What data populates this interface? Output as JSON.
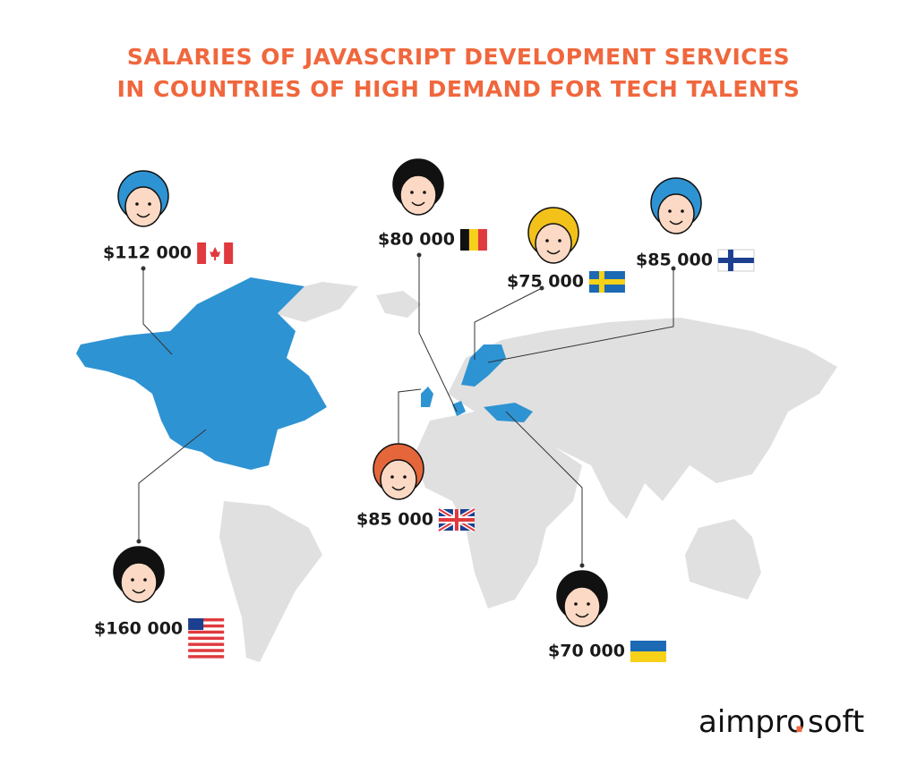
{
  "title": [
    "SALARIES OF JAVASCRIPT DEVELOPMENT SERVICES",
    "IN COUNTRIES OF HIGH DEMAND FOR TECH TALENTS"
  ],
  "markers": [
    {
      "label": "$112 000"
    },
    {
      "label": "$80 000"
    },
    {
      "label": "$75 000"
    },
    {
      "label": "$85 000"
    },
    {
      "label": "$85 000"
    },
    {
      "label": "$160 000"
    },
    {
      "label": "$70 000"
    }
  ],
  "logo": {
    "name": "aimpro",
    "dot": ".",
    "suffix": "soft"
  }
}
